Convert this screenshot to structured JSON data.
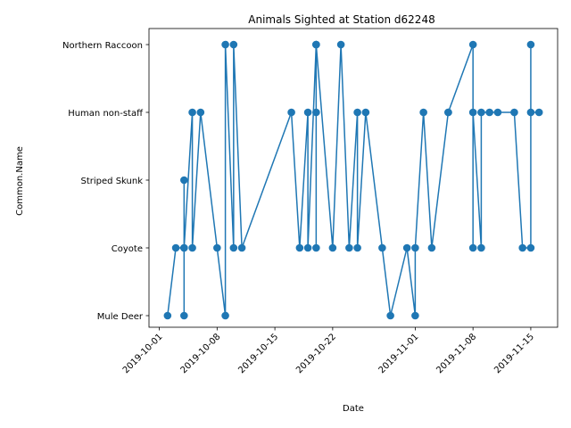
{
  "chart_data": {
    "type": "line",
    "title": "Animals Sighted at Station d62248",
    "xlabel": "Date",
    "ylabel": "Common.Name",
    "series_color": "#1f77b4",
    "categories": [
      "Mule Deer",
      "Coyote",
      "Striped Skunk",
      "Human non-staff",
      "Northern Raccoon"
    ],
    "x_ticks": [
      "2019-10-01",
      "2019-10-08",
      "2019-10-15",
      "2019-10-22",
      "2019-11-01",
      "2019-11-08",
      "2019-11-15"
    ],
    "xlim": [
      "2019-09-29T18:00",
      "2019-11-18T06:00"
    ],
    "grid": false,
    "series": [
      {
        "points": [
          {
            "x": "2019-10-02",
            "y": "Mule Deer"
          },
          {
            "x": "2019-10-03",
            "y": "Coyote"
          },
          {
            "x": "2019-10-04",
            "y": "Coyote"
          },
          {
            "x": "2019-10-04",
            "y": "Striped Skunk"
          },
          {
            "x": "2019-10-04",
            "y": "Mule Deer"
          },
          {
            "x": "2019-10-04",
            "y": "Coyote"
          },
          {
            "x": "2019-10-05",
            "y": "Human non-staff"
          },
          {
            "x": "2019-10-05",
            "y": "Coyote"
          },
          {
            "x": "2019-10-06",
            "y": "Human non-staff"
          },
          {
            "x": "2019-10-08",
            "y": "Coyote"
          },
          {
            "x": "2019-10-09",
            "y": "Mule Deer"
          },
          {
            "x": "2019-10-09",
            "y": "Northern Raccoon"
          },
          {
            "x": "2019-10-10",
            "y": "Coyote"
          },
          {
            "x": "2019-10-10",
            "y": "Northern Raccoon"
          },
          {
            "x": "2019-10-11",
            "y": "Coyote"
          },
          {
            "x": "2019-10-17",
            "y": "Human non-staff"
          },
          {
            "x": "2019-10-18",
            "y": "Coyote"
          },
          {
            "x": "2019-10-19",
            "y": "Human non-staff"
          },
          {
            "x": "2019-10-19",
            "y": "Coyote"
          },
          {
            "x": "2019-10-20",
            "y": "Northern Raccoon"
          },
          {
            "x": "2019-10-20",
            "y": "Northern Raccoon"
          },
          {
            "x": "2019-10-20",
            "y": "Human non-staff"
          },
          {
            "x": "2019-10-20",
            "y": "Coyote"
          },
          {
            "x": "2019-10-20",
            "y": "Northern Raccoon"
          },
          {
            "x": "2019-10-22",
            "y": "Coyote"
          },
          {
            "x": "2019-10-23",
            "y": "Northern Raccoon"
          },
          {
            "x": "2019-10-24",
            "y": "Coyote"
          },
          {
            "x": "2019-10-25",
            "y": "Human non-staff"
          },
          {
            "x": "2019-10-25",
            "y": "Coyote"
          },
          {
            "x": "2019-10-26",
            "y": "Human non-staff"
          },
          {
            "x": "2019-10-28",
            "y": "Coyote"
          },
          {
            "x": "2019-10-29",
            "y": "Mule Deer"
          },
          {
            "x": "2019-10-31",
            "y": "Coyote"
          },
          {
            "x": "2019-11-01",
            "y": "Mule Deer"
          },
          {
            "x": "2019-11-01",
            "y": "Coyote"
          },
          {
            "x": "2019-11-02",
            "y": "Human non-staff"
          },
          {
            "x": "2019-11-03",
            "y": "Coyote"
          },
          {
            "x": "2019-11-05",
            "y": "Human non-staff"
          },
          {
            "x": "2019-11-05",
            "y": "Human non-staff"
          },
          {
            "x": "2019-11-08",
            "y": "Northern Raccoon"
          },
          {
            "x": "2019-11-08",
            "y": "Coyote"
          },
          {
            "x": "2019-11-08",
            "y": "Human non-staff"
          },
          {
            "x": "2019-11-09",
            "y": "Coyote"
          },
          {
            "x": "2019-11-09",
            "y": "Human non-staff"
          },
          {
            "x": "2019-11-10",
            "y": "Human non-staff"
          },
          {
            "x": "2019-11-11",
            "y": "Human non-staff"
          },
          {
            "x": "2019-11-13",
            "y": "Human non-staff"
          },
          {
            "x": "2019-11-14",
            "y": "Coyote"
          },
          {
            "x": "2019-11-15",
            "y": "Coyote"
          },
          {
            "x": "2019-11-15",
            "y": "Northern Raccoon"
          },
          {
            "x": "2019-11-15",
            "y": "Human non-staff"
          },
          {
            "x": "2019-11-16",
            "y": "Human non-staff"
          }
        ]
      }
    ]
  }
}
